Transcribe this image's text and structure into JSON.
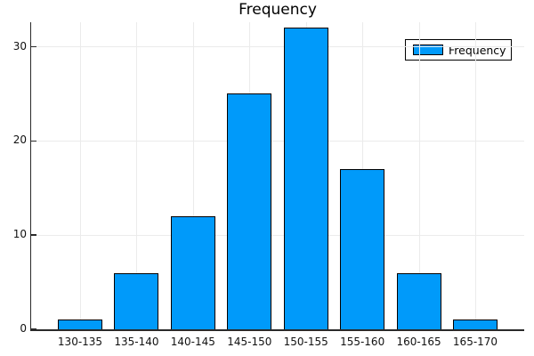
{
  "title": "Frequency",
  "legend": {
    "label": "Frequency",
    "position": "top-right"
  },
  "chart_data": {
    "type": "bar",
    "title": "Frequency",
    "categories": [
      "130-135",
      "135-140",
      "140-145",
      "145-150",
      "150-155",
      "155-160",
      "160-165",
      "165-170"
    ],
    "values": [
      1,
      6,
      12,
      25,
      32,
      17,
      6,
      1
    ],
    "series": [
      {
        "name": "Frequency",
        "values": [
          1,
          6,
          12,
          25,
          32,
          17,
          6,
          1
        ]
      }
    ],
    "xlabel": "",
    "ylabel": "",
    "yticks": [
      0,
      10,
      20,
      30
    ],
    "ylim": [
      0,
      32.6
    ],
    "grid": true,
    "legend_position": "top-right",
    "colors": {
      "bar_fill": "#009AFA",
      "bar_stroke": "#000000",
      "grid": "#ebebeb",
      "axis": "#2a2a2a",
      "background": "#ffffff",
      "text": "#111111"
    }
  }
}
